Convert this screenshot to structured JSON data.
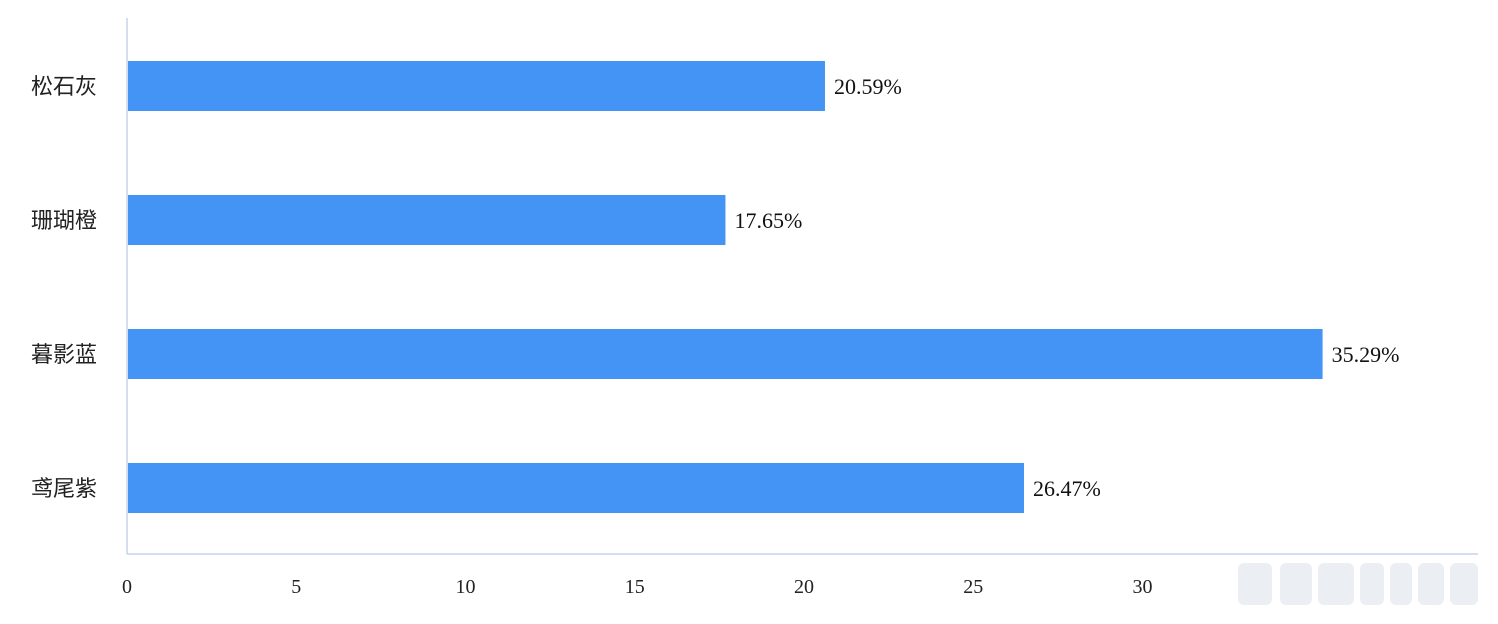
{
  "chart_data": {
    "type": "bar",
    "orientation": "horizontal",
    "title": "",
    "xlabel": "",
    "ylabel": "",
    "categories": [
      "松石灰",
      "珊瑚橙",
      "暮影蓝",
      "鸢尾紫"
    ],
    "values": [
      20.59,
      17.65,
      35.29,
      26.47
    ],
    "data_labels": [
      "20.59%",
      "17.65%",
      "35.29%",
      "26.47%"
    ],
    "xlim": [
      0,
      40
    ],
    "x_ticks": [
      0,
      5,
      10,
      15,
      20,
      25,
      30
    ],
    "grid": false,
    "legend": "none",
    "bar_color": "#4394f5",
    "axis_color": "#c7d3e6"
  }
}
